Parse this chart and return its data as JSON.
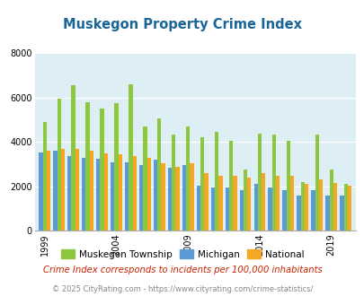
{
  "title": "Muskegon Property Crime Index",
  "title_color": "#1a6699",
  "subtitle": "Crime Index corresponds to incidents per 100,000 inhabitants",
  "subtitle_color": "#cc2200",
  "footer": "© 2025 CityRating.com - https://www.cityrating.com/crime-statistics/",
  "footer_color": "#888888",
  "years": [
    1999,
    2000,
    2001,
    2002,
    2003,
    2004,
    2005,
    2006,
    2007,
    2008,
    2009,
    2010,
    2011,
    2012,
    2013,
    2014,
    2015,
    2016,
    2017,
    2018,
    2019,
    2020
  ],
  "muskegon": [
    4900,
    5950,
    6550,
    5800,
    5500,
    5750,
    6600,
    4700,
    5050,
    4350,
    4700,
    4200,
    4450,
    4050,
    2750,
    4400,
    4350,
    4050,
    2200,
    4350,
    2750,
    2100
  ],
  "michigan": [
    3550,
    3600,
    3350,
    3300,
    3250,
    3100,
    3100,
    2950,
    3200,
    2850,
    2950,
    2050,
    1950,
    1950,
    1850,
    2100,
    1950,
    1850,
    1600,
    1850,
    1600,
    1600
  ],
  "national": [
    3600,
    3700,
    3700,
    3600,
    3500,
    3450,
    3350,
    3300,
    3050,
    2900,
    3050,
    2600,
    2500,
    2500,
    2400,
    2600,
    2500,
    2500,
    2100,
    2300,
    2150,
    2050
  ],
  "tick_years": [
    1999,
    2004,
    2009,
    2014,
    2019
  ],
  "ylim": [
    0,
    8000
  ],
  "yticks": [
    0,
    2000,
    4000,
    6000,
    8000
  ],
  "colors": {
    "muskegon": "#8dc63f",
    "michigan": "#5b9bd5",
    "national": "#f5a623"
  },
  "background_color": "#deeef5",
  "legend_labels": [
    "Muskegon Township",
    "Michigan",
    "National"
  ]
}
